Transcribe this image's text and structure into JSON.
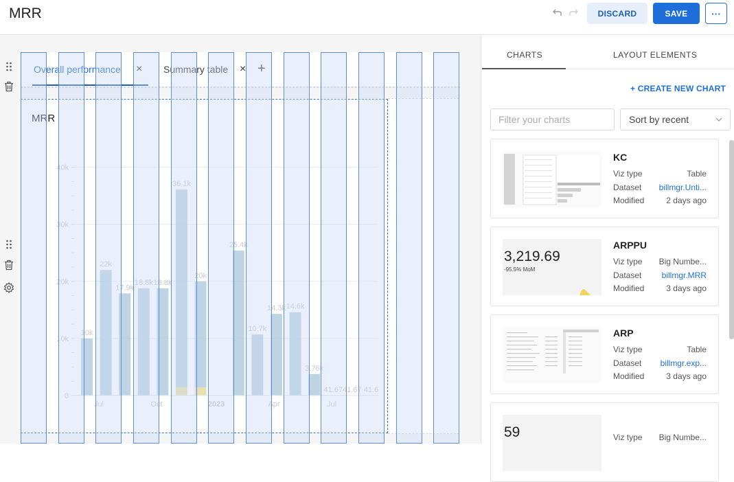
{
  "header": {
    "title": "MRR",
    "discard_label": "DISCARD",
    "save_label": "SAVE",
    "more_label": "···"
  },
  "tabs": [
    {
      "label": "Overall performance",
      "close": "×"
    },
    {
      "label": "Summary table",
      "close": "×"
    }
  ],
  "add_tab_label": "+",
  "chart": {
    "title": "MRR",
    "chart_data": {
      "type": "bar",
      "y_ticks": [
        "0",
        "10k",
        "20k",
        "30k",
        "40k"
      ],
      "ylim": [
        0,
        42000
      ],
      "x_ticks": [
        "Jul",
        "Oct",
        "2023",
        "Apr",
        "Jul"
      ],
      "values": [
        10000,
        22000,
        17900,
        18800,
        18800,
        36100,
        20000,
        0,
        25400,
        10700,
        14300,
        14600,
        3760,
        41.67,
        41.67,
        41.6
      ],
      "labels": [
        "10k",
        "22k",
        "17.9k",
        "18.8k",
        "18.8k",
        "36.1k",
        "20k",
        "",
        "25.4k",
        "10.7k",
        "14.3k",
        "14.6k",
        "3.76k",
        "41.67",
        "41.67",
        "41.6"
      ],
      "bar_color": "#a9c6d8",
      "secondary_color": "#f2e3a3"
    }
  },
  "panel": {
    "tab_charts": "CHARTS",
    "tab_layout": "LAYOUT ELEMENTS",
    "create_label": "+ CREATE NEW CHART",
    "filter_placeholder": "Filter your charts",
    "sort_value": "Sort by recent",
    "cards": [
      {
        "name": "KC",
        "viz_label": "Viz type",
        "viz": "Table",
        "ds_label": "Dataset",
        "dataset": "billmgr.Unti...",
        "mod_label": "Modified",
        "modified": "2 days ago"
      },
      {
        "name": "ARPPU",
        "viz_label": "Viz type",
        "viz": "Big Numbe...",
        "ds_label": "Dataset",
        "dataset": "billmgr.MRR",
        "mod_label": "Modified",
        "modified": "3 days ago",
        "thumb_number": "3,219.69",
        "thumb_sub": "-95.5% MoM"
      },
      {
        "name": "ARP",
        "viz_label": "Viz type",
        "viz": "Table",
        "ds_label": "Dataset",
        "dataset": "billmgr.exp...",
        "mod_label": "Modified",
        "modified": "3 days ago"
      },
      {
        "name": "",
        "viz_label": "Viz type",
        "viz": "Big Numbe...",
        "thumb_number": "59"
      }
    ]
  }
}
